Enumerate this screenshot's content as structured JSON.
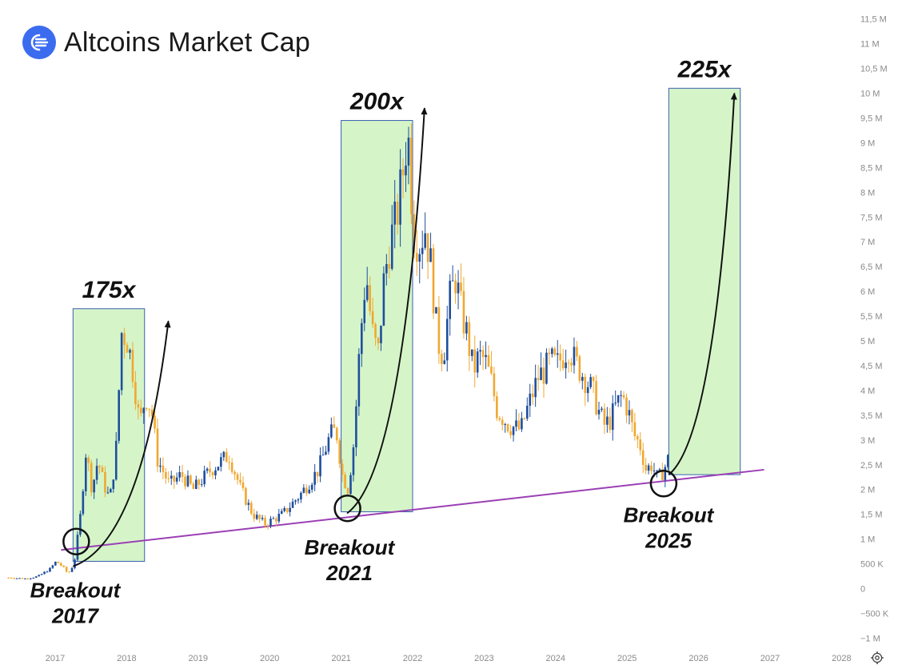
{
  "header": {
    "title": "Altcoins Market Cap",
    "logo_icon": "altcoins-logo-icon",
    "brand_color": "#3b6cf0"
  },
  "chart_data": {
    "type": "candlestick",
    "title": "Altcoins Market Cap",
    "xlabel": "",
    "ylabel": "",
    "x_ticks": [
      "2017",
      "2018",
      "2019",
      "2020",
      "2021",
      "2022",
      "2023",
      "2024",
      "2025",
      "2026",
      "2027",
      "2028"
    ],
    "y_ticks": [
      "11,5 M",
      "11 M",
      "10,5 M",
      "10 M",
      "9,5 M",
      "9 M",
      "8,5 M",
      "8 M",
      "7,5 M",
      "7 M",
      "6,5 M",
      "6 M",
      "5,5 M",
      "5 M",
      "4,5 M",
      "4 M",
      "3,5 M",
      "3 M",
      "2,5 M",
      "2 M",
      "1,5 M",
      "1 M",
      "500 K",
      "0",
      "−500 K",
      "−1 M"
    ],
    "y_axis_side": "right",
    "grid": false,
    "colors": {
      "up": "#1f4e9e",
      "down": "#f0a830",
      "trendline": "#9b3fb5",
      "highlight_fill": "#d5f5c8",
      "highlight_border": "#3a5fb0"
    },
    "price_path": [
      [
        "2016-05",
        0.22
      ],
      [
        "2016-08",
        0.2
      ],
      [
        "2016-10",
        0.25
      ],
      [
        "2016-12",
        0.4
      ],
      [
        "2017-01",
        0.55
      ],
      [
        "2017-02",
        0.45
      ],
      [
        "2017-03",
        0.3
      ],
      [
        "2017-04",
        0.5
      ],
      [
        "2017-05",
        1.4
      ],
      [
        "2017-06",
        2.8
      ],
      [
        "2017-07",
        2.0
      ],
      [
        "2017-08",
        2.6
      ],
      [
        "2017-09",
        2.1
      ],
      [
        "2017-10",
        1.8
      ],
      [
        "2017-11",
        2.7
      ],
      [
        "2017-12",
        5.2
      ],
      [
        "2018-01",
        5.0
      ],
      [
        "2018-02",
        4.3
      ],
      [
        "2018-03",
        3.3
      ],
      [
        "2018-04",
        3.9
      ],
      [
        "2018-05",
        3.6
      ],
      [
        "2018-06",
        2.6
      ],
      [
        "2018-08",
        2.1
      ],
      [
        "2018-10",
        2.3
      ],
      [
        "2018-12",
        2.0
      ],
      [
        "2019-03",
        2.4
      ],
      [
        "2019-06",
        2.7
      ],
      [
        "2019-08",
        2.0
      ],
      [
        "2019-10",
        1.5
      ],
      [
        "2019-12",
        1.3
      ],
      [
        "2020-03",
        1.5
      ],
      [
        "2020-06",
        1.9
      ],
      [
        "2020-09",
        2.4
      ],
      [
        "2020-11",
        3.1
      ],
      [
        "2020-12",
        3.2
      ],
      [
        "2021-01",
        2.3
      ],
      [
        "2021-02",
        2.0
      ],
      [
        "2021-03",
        3.0
      ],
      [
        "2021-04",
        5.0
      ],
      [
        "2021-05",
        6.4
      ],
      [
        "2021-06",
        5.2
      ],
      [
        "2021-07",
        4.7
      ],
      [
        "2021-08",
        6.2
      ],
      [
        "2021-09",
        7.0
      ],
      [
        "2021-10",
        7.4
      ],
      [
        "2021-11",
        8.2
      ],
      [
        "2021-12",
        9.3
      ],
      [
        "2022-01",
        7.2
      ],
      [
        "2022-02",
        7.0
      ],
      [
        "2022-03",
        7.3
      ],
      [
        "2022-04",
        6.4
      ],
      [
        "2022-05",
        5.0
      ],
      [
        "2022-06",
        4.7
      ],
      [
        "2022-07",
        5.8
      ],
      [
        "2022-08",
        6.3
      ],
      [
        "2022-09",
        5.6
      ],
      [
        "2022-10",
        5.1
      ],
      [
        "2022-11",
        4.4
      ],
      [
        "2022-12",
        4.7
      ],
      [
        "2023-01",
        4.6
      ],
      [
        "2023-02",
        4.2
      ],
      [
        "2023-03",
        3.6
      ],
      [
        "2023-05",
        3.3
      ],
      [
        "2023-07",
        3.2
      ],
      [
        "2023-08",
        3.6
      ],
      [
        "2023-10",
        4.3
      ],
      [
        "2023-11",
        4.4
      ],
      [
        "2023-12",
        4.6
      ],
      [
        "2024-01",
        4.5
      ],
      [
        "2024-02",
        4.7
      ],
      [
        "2024-03",
        4.9
      ],
      [
        "2024-04",
        4.6
      ],
      [
        "2024-05",
        4.4
      ],
      [
        "2024-07",
        4.0
      ],
      [
        "2024-08",
        3.6
      ],
      [
        "2024-09",
        3.3
      ],
      [
        "2024-10",
        3.4
      ],
      [
        "2024-11",
        3.7
      ],
      [
        "2024-12",
        3.9
      ],
      [
        "2025-01",
        3.6
      ],
      [
        "2025-02",
        3.1
      ],
      [
        "2025-03",
        2.9
      ],
      [
        "2025-04",
        2.4
      ],
      [
        "2025-05",
        2.5
      ],
      [
        "2025-06",
        2.2
      ],
      [
        "2025-07",
        2.4
      ],
      [
        "2025-08",
        2.7
      ]
    ],
    "trendline": {
      "from": [
        "2017-02",
        0.78
      ],
      "to": [
        "2026-12",
        2.4
      ]
    },
    "highlight_zones": [
      {
        "from": "2017-04",
        "to": "2018-04",
        "low": 0.55,
        "high": 5.65,
        "label": "175x"
      },
      {
        "from": "2021-01",
        "to": "2022-01",
        "low": 1.55,
        "high": 9.45,
        "label": "200x"
      },
      {
        "from": "2025-08",
        "to": "2026-08",
        "low": 2.3,
        "high": 10.1,
        "label": "225x"
      }
    ],
    "breakouts": [
      {
        "at": [
          "2017-04",
          0.95
        ],
        "label_line1": "Breakout",
        "label_line2": "2017"
      },
      {
        "at": [
          "2021-01",
          1.62
        ],
        "label_line1": "Breakout",
        "label_line2": "2021"
      },
      {
        "at": [
          "2025-07",
          2.12
        ],
        "label_line1": "Breakout",
        "label_line2": "2025"
      }
    ],
    "projection_arrows": [
      {
        "from": [
          "2017-04",
          0.45
        ],
        "to": [
          "2018-08",
          5.4
        ]
      },
      {
        "from": [
          "2021-02",
          1.52
        ],
        "to": [
          "2022-03",
          9.7
        ]
      },
      {
        "from": [
          "2025-08",
          2.3
        ],
        "to": [
          "2026-07",
          10.0
        ]
      }
    ]
  },
  "footer": {
    "settings_icon": "settings-gear-icon"
  }
}
